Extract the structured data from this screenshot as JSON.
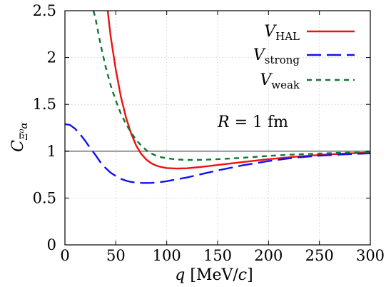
{
  "chart_data": {
    "type": "line",
    "xlabel": "q [MeV/c]",
    "xlabel_var": "q",
    "xlabel_unit_pre": " [MeV/",
    "xlabel_unit_var": "c",
    "xlabel_unit_post": "]",
    "ylabel": "C_{Ξ⁰α}",
    "ylabel_main": "C",
    "ylabel_sub": "Ξ⁰α",
    "xlim": [
      0,
      300
    ],
    "ylim": [
      0,
      2.5
    ],
    "x_ticks": [
      0,
      50,
      100,
      150,
      200,
      250,
      300
    ],
    "x_tick_labels": [
      "0",
      "50",
      "100",
      "150",
      "200",
      "250",
      "300"
    ],
    "y_ticks": [
      0,
      0.5,
      1,
      1.5,
      2,
      2.5
    ],
    "y_tick_labels": [
      "0",
      "0.5",
      "1",
      "1.5",
      "2",
      "2.5"
    ],
    "grid": true,
    "legend_position": "top-right",
    "annotation": {
      "text": "R = 1 fm",
      "var": "R",
      "rest": " = 1 fm",
      "x": 185,
      "y": 1.32
    },
    "reference_line": {
      "y": 1,
      "color": "#999999"
    },
    "series": [
      {
        "name": "V_HAL",
        "label_main": "V",
        "label_sub": "HAL",
        "color": "#ee1111",
        "dash": "solid",
        "x": [
          42,
          45,
          50,
          55,
          60,
          65,
          70,
          75,
          80,
          85,
          90,
          95,
          100,
          110,
          120,
          130,
          140,
          150,
          160,
          175,
          200,
          225,
          250,
          275,
          300
        ],
        "y": [
          2.5,
          2.22,
          1.87,
          1.58,
          1.36,
          1.19,
          1.06,
          0.97,
          0.91,
          0.87,
          0.845,
          0.83,
          0.82,
          0.815,
          0.818,
          0.828,
          0.84,
          0.853,
          0.866,
          0.885,
          0.915,
          0.94,
          0.96,
          0.975,
          0.985
        ]
      },
      {
        "name": "V_strong",
        "label_main": "V",
        "label_sub": "strong",
        "color": "#1111ee",
        "dash": "long",
        "x": [
          0,
          5,
          10,
          15,
          20,
          25,
          30,
          35,
          40,
          45,
          50,
          55,
          60,
          65,
          70,
          75,
          80,
          85,
          90,
          95,
          100,
          110,
          120,
          130,
          140,
          150,
          175,
          200,
          225,
          250,
          275,
          300
        ],
        "y": [
          1.29,
          1.28,
          1.24,
          1.18,
          1.11,
          1.03,
          0.96,
          0.88,
          0.82,
          0.77,
          0.735,
          0.705,
          0.685,
          0.672,
          0.665,
          0.662,
          0.661,
          0.662,
          0.666,
          0.672,
          0.68,
          0.7,
          0.72,
          0.745,
          0.77,
          0.795,
          0.85,
          0.895,
          0.93,
          0.952,
          0.967,
          0.977
        ]
      },
      {
        "name": "V_weak",
        "label_main": "V",
        "label_sub": "weak",
        "color": "#117733",
        "dash": "short",
        "x": [
          28,
          30,
          35,
          40,
          45,
          50,
          55,
          60,
          65,
          70,
          75,
          80,
          85,
          90,
          95,
          100,
          110,
          120,
          130,
          140,
          150,
          175,
          200,
          225,
          250,
          275,
          300
        ],
        "y": [
          2.5,
          2.42,
          2.14,
          1.9,
          1.7,
          1.54,
          1.4,
          1.29,
          1.2,
          1.12,
          1.06,
          1.01,
          0.975,
          0.95,
          0.935,
          0.925,
          0.912,
          0.907,
          0.907,
          0.91,
          0.915,
          0.93,
          0.95,
          0.965,
          0.975,
          0.985,
          0.99
        ]
      }
    ]
  }
}
